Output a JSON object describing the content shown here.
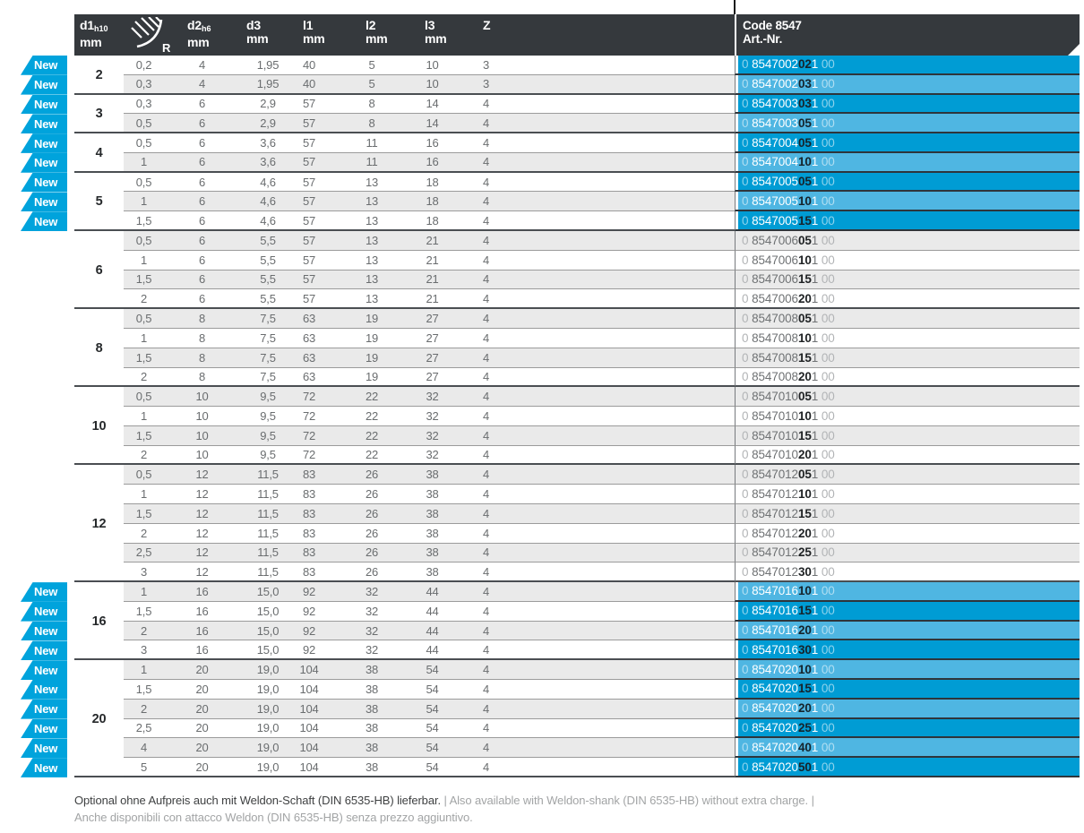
{
  "badge_label": "New",
  "colors": {
    "header_bg": "#35393d",
    "badge_cyan": "#00a3dc",
    "row_blue_dark": "#009cd4",
    "row_blue_light": "#4fb6e2",
    "stripe_grey": "#eaeaea"
  },
  "header": {
    "d1": {
      "label": "d1",
      "tol": "h10",
      "unit": "mm"
    },
    "r": {
      "icon": "corner-radius-icon",
      "label": "R"
    },
    "d2": {
      "label": "d2",
      "tol": "h6",
      "unit": "mm"
    },
    "d3": {
      "label": "d3",
      "unit": "mm"
    },
    "l1": {
      "label": "l1",
      "unit": "mm"
    },
    "l2": {
      "label": "l2",
      "unit": "mm"
    },
    "l3": {
      "label": "l3",
      "unit": "mm"
    },
    "z": {
      "label": "Z"
    },
    "art": {
      "line1": "Code 8547",
      "line2": "Art.-Nr."
    }
  },
  "groups": [
    {
      "d1": "2",
      "rows": [
        {
          "is_new": true,
          "r": "0,2",
          "d2": "4",
          "d3": "1,95",
          "l1": "40",
          "l2": "5",
          "l3": "10",
          "z": "3",
          "art": {
            "lead": "0",
            "body": "8547002",
            "bold": "02",
            "tail": "1",
            "end": "00"
          }
        },
        {
          "is_new": true,
          "r": "0,3",
          "d2": "4",
          "d3": "1,95",
          "l1": "40",
          "l2": "5",
          "l3": "10",
          "z": "3",
          "art": {
            "lead": "0",
            "body": "8547002",
            "bold": "03",
            "tail": "1",
            "end": "00"
          }
        }
      ]
    },
    {
      "d1": "3",
      "rows": [
        {
          "is_new": true,
          "r": "0,3",
          "d2": "6",
          "d3": "2,9",
          "l1": "57",
          "l2": "8",
          "l3": "14",
          "z": "4",
          "art": {
            "lead": "0",
            "body": "8547003",
            "bold": "03",
            "tail": "1",
            "end": "00"
          }
        },
        {
          "is_new": true,
          "r": "0,5",
          "d2": "6",
          "d3": "2,9",
          "l1": "57",
          "l2": "8",
          "l3": "14",
          "z": "4",
          "art": {
            "lead": "0",
            "body": "8547003",
            "bold": "05",
            "tail": "1",
            "end": "00"
          }
        }
      ]
    },
    {
      "d1": "4",
      "rows": [
        {
          "is_new": true,
          "r": "0,5",
          "d2": "6",
          "d3": "3,6",
          "l1": "57",
          "l2": "11",
          "l3": "16",
          "z": "4",
          "art": {
            "lead": "0",
            "body": "8547004",
            "bold": "05",
            "tail": "1",
            "end": "00"
          }
        },
        {
          "is_new": true,
          "r": "1",
          "d2": "6",
          "d3": "3,6",
          "l1": "57",
          "l2": "11",
          "l3": "16",
          "z": "4",
          "art": {
            "lead": "0",
            "body": "8547004",
            "bold": "10",
            "tail": "1",
            "end": "00"
          }
        }
      ]
    },
    {
      "d1": "5",
      "rows": [
        {
          "is_new": true,
          "r": "0,5",
          "d2": "6",
          "d3": "4,6",
          "l1": "57",
          "l2": "13",
          "l3": "18",
          "z": "4",
          "art": {
            "lead": "0",
            "body": "8547005",
            "bold": "05",
            "tail": "1",
            "end": "00"
          }
        },
        {
          "is_new": true,
          "r": "1",
          "d2": "6",
          "d3": "4,6",
          "l1": "57",
          "l2": "13",
          "l3": "18",
          "z": "4",
          "art": {
            "lead": "0",
            "body": "8547005",
            "bold": "10",
            "tail": "1",
            "end": "00"
          }
        },
        {
          "is_new": true,
          "r": "1,5",
          "d2": "6",
          "d3": "4,6",
          "l1": "57",
          "l2": "13",
          "l3": "18",
          "z": "4",
          "art": {
            "lead": "0",
            "body": "8547005",
            "bold": "15",
            "tail": "1",
            "end": "00"
          }
        }
      ]
    },
    {
      "d1": "6",
      "rows": [
        {
          "is_new": false,
          "r": "0,5",
          "d2": "6",
          "d3": "5,5",
          "l1": "57",
          "l2": "13",
          "l3": "21",
          "z": "4",
          "art": {
            "lead": "0",
            "body": "8547006",
            "bold": "05",
            "tail": "1",
            "end": "00"
          }
        },
        {
          "is_new": false,
          "r": "1",
          "d2": "6",
          "d3": "5,5",
          "l1": "57",
          "l2": "13",
          "l3": "21",
          "z": "4",
          "art": {
            "lead": "0",
            "body": "8547006",
            "bold": "10",
            "tail": "1",
            "end": "00"
          }
        },
        {
          "is_new": false,
          "r": "1,5",
          "d2": "6",
          "d3": "5,5",
          "l1": "57",
          "l2": "13",
          "l3": "21",
          "z": "4",
          "art": {
            "lead": "0",
            "body": "8547006",
            "bold": "15",
            "tail": "1",
            "end": "00"
          }
        },
        {
          "is_new": false,
          "r": "2",
          "d2": "6",
          "d3": "5,5",
          "l1": "57",
          "l2": "13",
          "l3": "21",
          "z": "4",
          "art": {
            "lead": "0",
            "body": "8547006",
            "bold": "20",
            "tail": "1",
            "end": "00"
          }
        }
      ]
    },
    {
      "d1": "8",
      "rows": [
        {
          "is_new": false,
          "r": "0,5",
          "d2": "8",
          "d3": "7,5",
          "l1": "63",
          "l2": "19",
          "l3": "27",
          "z": "4",
          "art": {
            "lead": "0",
            "body": "8547008",
            "bold": "05",
            "tail": "1",
            "end": "00"
          }
        },
        {
          "is_new": false,
          "r": "1",
          "d2": "8",
          "d3": "7,5",
          "l1": "63",
          "l2": "19",
          "l3": "27",
          "z": "4",
          "art": {
            "lead": "0",
            "body": "8547008",
            "bold": "10",
            "tail": "1",
            "end": "00"
          }
        },
        {
          "is_new": false,
          "r": "1,5",
          "d2": "8",
          "d3": "7,5",
          "l1": "63",
          "l2": "19",
          "l3": "27",
          "z": "4",
          "art": {
            "lead": "0",
            "body": "8547008",
            "bold": "15",
            "tail": "1",
            "end": "00"
          }
        },
        {
          "is_new": false,
          "r": "2",
          "d2": "8",
          "d3": "7,5",
          "l1": "63",
          "l2": "19",
          "l3": "27",
          "z": "4",
          "art": {
            "lead": "0",
            "body": "8547008",
            "bold": "20",
            "tail": "1",
            "end": "00"
          }
        }
      ]
    },
    {
      "d1": "10",
      "rows": [
        {
          "is_new": false,
          "r": "0,5",
          "d2": "10",
          "d3": "9,5",
          "l1": "72",
          "l2": "22",
          "l3": "32",
          "z": "4",
          "art": {
            "lead": "0",
            "body": "8547010",
            "bold": "05",
            "tail": "1",
            "end": "00"
          }
        },
        {
          "is_new": false,
          "r": "1",
          "d2": "10",
          "d3": "9,5",
          "l1": "72",
          "l2": "22",
          "l3": "32",
          "z": "4",
          "art": {
            "lead": "0",
            "body": "8547010",
            "bold": "10",
            "tail": "1",
            "end": "00"
          }
        },
        {
          "is_new": false,
          "r": "1,5",
          "d2": "10",
          "d3": "9,5",
          "l1": "72",
          "l2": "22",
          "l3": "32",
          "z": "4",
          "art": {
            "lead": "0",
            "body": "8547010",
            "bold": "15",
            "tail": "1",
            "end": "00"
          }
        },
        {
          "is_new": false,
          "r": "2",
          "d2": "10",
          "d3": "9,5",
          "l1": "72",
          "l2": "22",
          "l3": "32",
          "z": "4",
          "art": {
            "lead": "0",
            "body": "8547010",
            "bold": "20",
            "tail": "1",
            "end": "00"
          }
        }
      ]
    },
    {
      "d1": "12",
      "rows": [
        {
          "is_new": false,
          "r": "0,5",
          "d2": "12",
          "d3": "11,5",
          "l1": "83",
          "l2": "26",
          "l3": "38",
          "z": "4",
          "art": {
            "lead": "0",
            "body": "8547012",
            "bold": "05",
            "tail": "1",
            "end": "00"
          }
        },
        {
          "is_new": false,
          "r": "1",
          "d2": "12",
          "d3": "11,5",
          "l1": "83",
          "l2": "26",
          "l3": "38",
          "z": "4",
          "art": {
            "lead": "0",
            "body": "8547012",
            "bold": "10",
            "tail": "1",
            "end": "00"
          }
        },
        {
          "is_new": false,
          "r": "1,5",
          "d2": "12",
          "d3": "11,5",
          "l1": "83",
          "l2": "26",
          "l3": "38",
          "z": "4",
          "art": {
            "lead": "0",
            "body": "8547012",
            "bold": "15",
            "tail": "1",
            "end": "00"
          }
        },
        {
          "is_new": false,
          "r": "2",
          "d2": "12",
          "d3": "11,5",
          "l1": "83",
          "l2": "26",
          "l3": "38",
          "z": "4",
          "art": {
            "lead": "0",
            "body": "8547012",
            "bold": "20",
            "tail": "1",
            "end": "00"
          }
        },
        {
          "is_new": false,
          "r": "2,5",
          "d2": "12",
          "d3": "11,5",
          "l1": "83",
          "l2": "26",
          "l3": "38",
          "z": "4",
          "art": {
            "lead": "0",
            "body": "8547012",
            "bold": "25",
            "tail": "1",
            "end": "00"
          }
        },
        {
          "is_new": false,
          "r": "3",
          "d2": "12",
          "d3": "11,5",
          "l1": "83",
          "l2": "26",
          "l3": "38",
          "z": "4",
          "art": {
            "lead": "0",
            "body": "8547012",
            "bold": "30",
            "tail": "1",
            "end": "00"
          }
        }
      ]
    },
    {
      "d1": "16",
      "rows": [
        {
          "is_new": true,
          "r": "1",
          "d2": "16",
          "d3": "15,0",
          "l1": "92",
          "l2": "32",
          "l3": "44",
          "z": "4",
          "art": {
            "lead": "0",
            "body": "8547016",
            "bold": "10",
            "tail": "1",
            "end": "00"
          }
        },
        {
          "is_new": true,
          "r": "1,5",
          "d2": "16",
          "d3": "15,0",
          "l1": "92",
          "l2": "32",
          "l3": "44",
          "z": "4",
          "art": {
            "lead": "0",
            "body": "8547016",
            "bold": "15",
            "tail": "1",
            "end": "00"
          }
        },
        {
          "is_new": true,
          "r": "2",
          "d2": "16",
          "d3": "15,0",
          "l1": "92",
          "l2": "32",
          "l3": "44",
          "z": "4",
          "art": {
            "lead": "0",
            "body": "8547016",
            "bold": "20",
            "tail": "1",
            "end": "00"
          }
        },
        {
          "is_new": true,
          "r": "3",
          "d2": "16",
          "d3": "15,0",
          "l1": "92",
          "l2": "32",
          "l3": "44",
          "z": "4",
          "art": {
            "lead": "0",
            "body": "8547016",
            "bold": "30",
            "tail": "1",
            "end": "00"
          }
        }
      ]
    },
    {
      "d1": "20",
      "rows": [
        {
          "is_new": true,
          "r": "1",
          "d2": "20",
          "d3": "19,0",
          "l1": "104",
          "l2": "38",
          "l3": "54",
          "z": "4",
          "art": {
            "lead": "0",
            "body": "8547020",
            "bold": "10",
            "tail": "1",
            "end": "00"
          }
        },
        {
          "is_new": true,
          "r": "1,5",
          "d2": "20",
          "d3": "19,0",
          "l1": "104",
          "l2": "38",
          "l3": "54",
          "z": "4",
          "art": {
            "lead": "0",
            "body": "8547020",
            "bold": "15",
            "tail": "1",
            "end": "00"
          }
        },
        {
          "is_new": true,
          "r": "2",
          "d2": "20",
          "d3": "19,0",
          "l1": "104",
          "l2": "38",
          "l3": "54",
          "z": "4",
          "art": {
            "lead": "0",
            "body": "8547020",
            "bold": "20",
            "tail": "1",
            "end": "00"
          }
        },
        {
          "is_new": true,
          "r": "2,5",
          "d2": "20",
          "d3": "19,0",
          "l1": "104",
          "l2": "38",
          "l3": "54",
          "z": "4",
          "art": {
            "lead": "0",
            "body": "8547020",
            "bold": "25",
            "tail": "1",
            "end": "00"
          }
        },
        {
          "is_new": true,
          "r": "4",
          "d2": "20",
          "d3": "19,0",
          "l1": "104",
          "l2": "38",
          "l3": "54",
          "z": "4",
          "art": {
            "lead": "0",
            "body": "8547020",
            "bold": "40",
            "tail": "1",
            "end": "00"
          }
        },
        {
          "is_new": true,
          "r": "5",
          "d2": "20",
          "d3": "19,0",
          "l1": "104",
          "l2": "38",
          "l3": "54",
          "z": "4",
          "art": {
            "lead": "0",
            "body": "8547020",
            "bold": "50",
            "tail": "1",
            "end": "00"
          }
        }
      ]
    }
  ],
  "footer": {
    "de": "Optional ohne Aufpreis auch mit Weldon-Schaft (DIN 6535-HB) lieferbar.",
    "rest": " | Also available with Weldon-shank (DIN 6535-HB) without extra charge. |",
    "it": "Anche disponibili con attacco Weldon (DIN 6535-HB) senza prezzo aggiuntivo."
  }
}
